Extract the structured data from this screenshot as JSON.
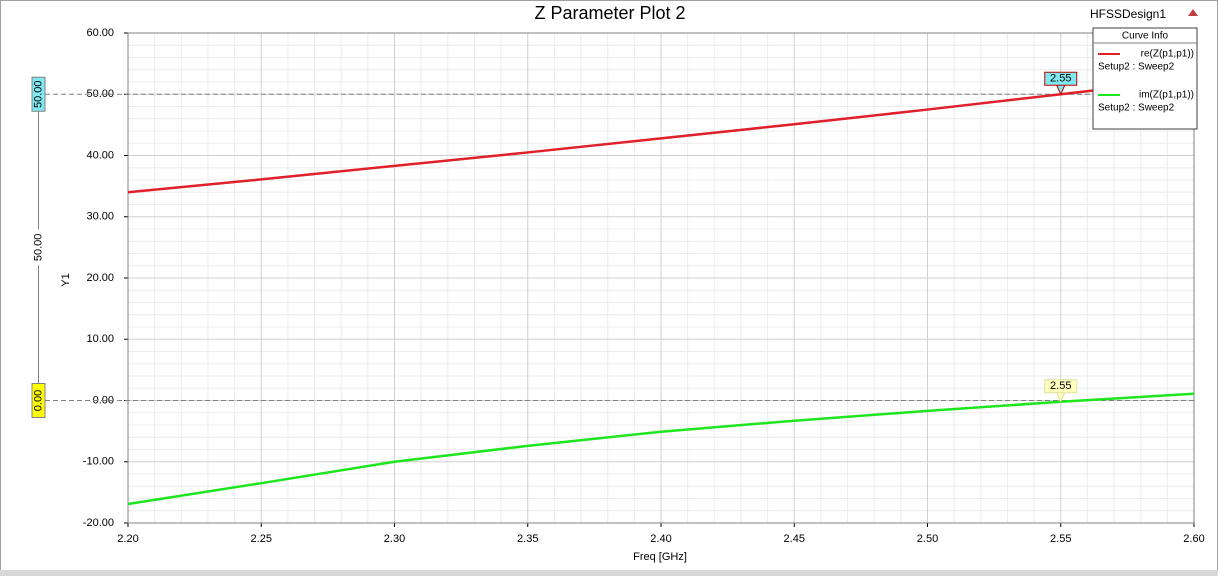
{
  "chart_data": {
    "type": "line",
    "title": "Z Parameter Plot 2",
    "design": "HFSSDesign1",
    "legend_title": "Curve Info",
    "x_label": "Freq [GHz]",
    "y_label": "Y1",
    "x": [
      2.2,
      2.25,
      2.3,
      2.35,
      2.4,
      2.45,
      2.5,
      2.55,
      2.6
    ],
    "series": [
      {
        "name": "re(Z(p1,p1))",
        "setup": "Setup2 : Sweep2",
        "color": "#e0202a",
        "values": [
          34.0,
          36.1,
          38.3,
          40.5,
          42.8,
          45.1,
          47.5,
          50.0,
          52.5
        ]
      },
      {
        "name": "im(Z(p1,p1))",
        "setup": "Setup2 : Sweep2",
        "color": "#1ee61e",
        "values": [
          -16.9,
          -13.5,
          -10.0,
          -7.4,
          -5.1,
          -3.3,
          -1.7,
          -0.2,
          1.1
        ]
      }
    ],
    "markers": [
      {
        "x": 2.55,
        "label": "2.55",
        "color": "#7fe8f0",
        "border": "#c00000"
      },
      {
        "x": 2.55,
        "label": "2.55",
        "color": "#ffffc0",
        "border": "#e0e0a0"
      }
    ],
    "y_markers": [
      {
        "value": 50,
        "label": "50.00",
        "color": "#7fe8f0"
      },
      {
        "value": 0,
        "label": "0.00",
        "color": "#ffff00"
      }
    ],
    "y_marker_delta": {
      "value": 50,
      "label": "50.00"
    },
    "xlim": [
      2.2,
      2.6
    ],
    "ylim": [
      -20,
      60
    ],
    "xticks": [
      {
        "value": 2.2,
        "label": "2.20"
      },
      2.25,
      {
        "value": 2.3,
        "label": "2.30"
      },
      2.35,
      {
        "value": 2.4,
        "label": "2.40"
      },
      2.45,
      {
        "value": 2.5,
        "label": "2.50"
      },
      2.55,
      {
        "value": 2.6,
        "label": "2.60"
      }
    ],
    "yticks": [
      {
        "value": -20,
        "label": "-20.00"
      },
      {
        "value": -10,
        "label": "-10.00"
      },
      {
        "value": 0,
        "label": "0.00"
      },
      {
        "value": 10,
        "label": "10.00"
      },
      {
        "value": 20,
        "label": "20.00"
      },
      {
        "value": 30,
        "label": "30.00"
      },
      {
        "value": 40,
        "label": "40.00"
      },
      {
        "value": 50,
        "label": "50.00"
      },
      {
        "value": 60,
        "label": "60.00"
      }
    ],
    "grid": true,
    "minor_grid": 5
  }
}
